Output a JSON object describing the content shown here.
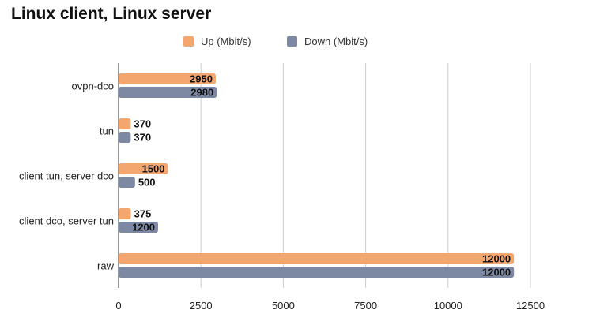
{
  "chart_data": {
    "type": "bar",
    "orientation": "horizontal",
    "title": "Linux client, Linux server",
    "xlabel": "",
    "ylabel": "",
    "xlim": [
      0,
      12500
    ],
    "x_ticks": [
      0,
      2500,
      5000,
      7500,
      10000,
      12500
    ],
    "grid": "vertical",
    "legend_placement": "top-center",
    "categories": [
      "ovpn-dco",
      "tun",
      "client tun, server dco",
      "client dco, server tun",
      "raw"
    ],
    "series": [
      {
        "name": "Up (Mbit/s)",
        "color": "#F4A66F",
        "values": [
          2950,
          370,
          1500,
          375,
          12000
        ]
      },
      {
        "name": "Down (Mbit/s)",
        "color": "#7D89A3",
        "values": [
          2980,
          370,
          500,
          1200,
          12000
        ]
      }
    ]
  }
}
